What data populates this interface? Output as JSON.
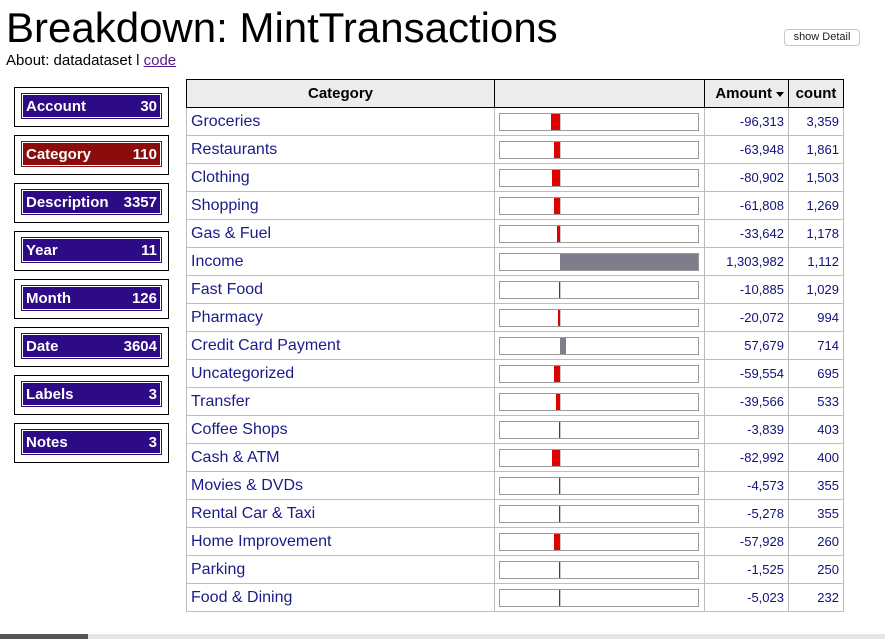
{
  "page": {
    "title": "Breakdown: MintTransactions",
    "about_prefix": "About: datadataset l ",
    "about_link": "code",
    "show_detail_label": "show Detail"
  },
  "facets": [
    {
      "label": "Account",
      "count": "30",
      "active": false
    },
    {
      "label": "Category",
      "count": "110",
      "active": true
    },
    {
      "label": "Description",
      "count": "3357",
      "active": false
    },
    {
      "label": "Year",
      "count": "11",
      "active": false
    },
    {
      "label": "Month",
      "count": "126",
      "active": false
    },
    {
      "label": "Date",
      "count": "3604",
      "active": false
    },
    {
      "label": "Labels",
      "count": "3",
      "active": false
    },
    {
      "label": "Notes",
      "count": "3",
      "active": false
    }
  ],
  "table": {
    "headers": {
      "category": "Category",
      "bar": "",
      "amount": "Amount",
      "count": "count"
    },
    "rows": [
      {
        "category": "Groceries",
        "amount": "-96,313",
        "amount_value": -96313,
        "count": "3,359"
      },
      {
        "category": "Restaurants",
        "amount": "-63,948",
        "amount_value": -63948,
        "count": "1,861"
      },
      {
        "category": "Clothing",
        "amount": "-80,902",
        "amount_value": -80902,
        "count": "1,503"
      },
      {
        "category": "Shopping",
        "amount": "-61,808",
        "amount_value": -61808,
        "count": "1,269"
      },
      {
        "category": "Gas & Fuel",
        "amount": "-33,642",
        "amount_value": -33642,
        "count": "1,178"
      },
      {
        "category": "Income",
        "amount": "1,303,982",
        "amount_value": 1303982,
        "count": "1,112"
      },
      {
        "category": "Fast Food",
        "amount": "-10,885",
        "amount_value": -10885,
        "count": "1,029"
      },
      {
        "category": "Pharmacy",
        "amount": "-20,072",
        "amount_value": -20072,
        "count": "994"
      },
      {
        "category": "Credit Card Payment",
        "amount": "57,679",
        "amount_value": 57679,
        "count": "714"
      },
      {
        "category": "Uncategorized",
        "amount": "-59,554",
        "amount_value": -59554,
        "count": "695"
      },
      {
        "category": "Transfer",
        "amount": "-39,566",
        "amount_value": -39566,
        "count": "533"
      },
      {
        "category": "Coffee Shops",
        "amount": "-3,839",
        "amount_value": -3839,
        "count": "403"
      },
      {
        "category": "Cash & ATM",
        "amount": "-82,992",
        "amount_value": -82992,
        "count": "400"
      },
      {
        "category": "Movies & DVDs",
        "amount": "-4,573",
        "amount_value": -4573,
        "count": "355"
      },
      {
        "category": "Rental Car & Taxi",
        "amount": "-5,278",
        "amount_value": -5278,
        "count": "355"
      },
      {
        "category": "Home Improvement",
        "amount": "-57,928",
        "amount_value": -57928,
        "count": "260"
      },
      {
        "category": "Parking",
        "amount": "-1,525",
        "amount_value": -1525,
        "count": "250"
      },
      {
        "category": "Food & Dining",
        "amount": "-5,023",
        "amount_value": -5023,
        "count": "232"
      }
    ]
  },
  "colors": {
    "negative_bar": "#e00000",
    "positive_bar": "#7d7d8c",
    "facet_bg": "#2d0a86",
    "facet_active_bg": "#8a0c0c"
  }
}
